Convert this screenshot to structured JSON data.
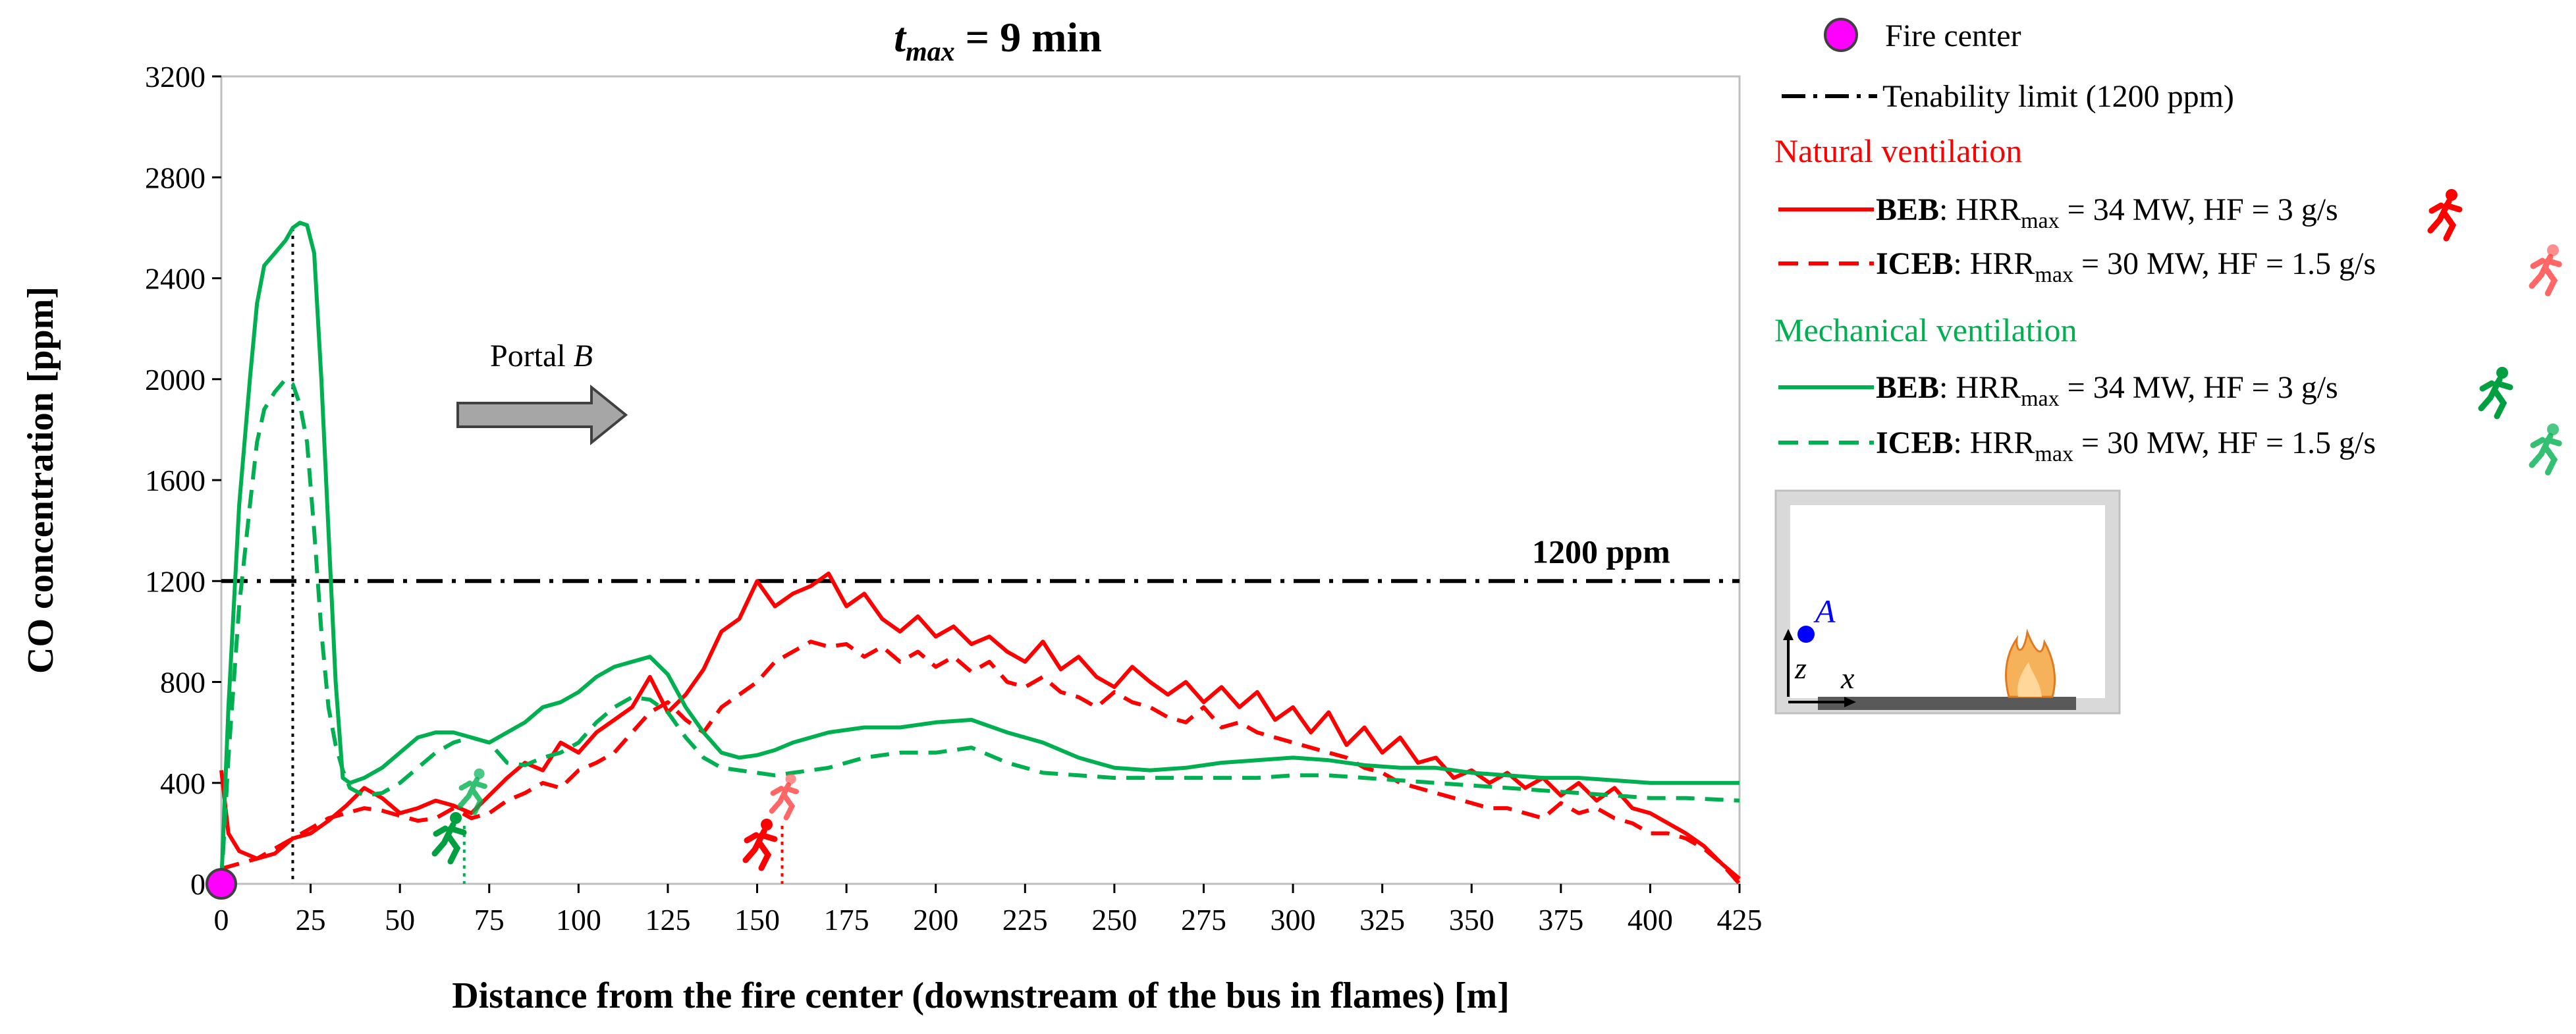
{
  "chart_data": {
    "type": "line",
    "title_var": "t",
    "title_sub": "max",
    "title_rest": " = 9 min",
    "xlabel": "Distance from the fire center (downstream of the bus in flames) [m]",
    "ylabel": "CO concentration [ppm]",
    "xlim": [
      0,
      425
    ],
    "ylim": [
      0,
      3200
    ],
    "xticks": [
      "0",
      "25",
      "50",
      "75",
      "100",
      "125",
      "150",
      "175",
      "200",
      "225",
      "250",
      "275",
      "300",
      "325",
      "350",
      "375",
      "400",
      "425"
    ],
    "yticks": [
      "0",
      "400",
      "800",
      "1200",
      "1600",
      "2000",
      "2400",
      "2800",
      "3200"
    ],
    "threshold": {
      "value": 1200,
      "label": "1200 ppm"
    },
    "annotation": {
      "text": "Portal ",
      "italic": "B"
    },
    "markers": {
      "fire_center_x": 0,
      "green_vline_x": 20,
      "occupant_bev_mech_x": 68,
      "occupant_bev_nat_x": 157
    },
    "series": [
      {
        "name": "Natural ventilation - BEB",
        "color": "#ff0000",
        "dash": "solid",
        "x": [
          0,
          2,
          5,
          10,
          15,
          20,
          25,
          30,
          35,
          40,
          45,
          50,
          55,
          60,
          65,
          70,
          75,
          80,
          85,
          90,
          95,
          100,
          105,
          110,
          115,
          120,
          125,
          130,
          135,
          140,
          145,
          150,
          155,
          160,
          165,
          170,
          175,
          180,
          185,
          190,
          195,
          200,
          205,
          210,
          215,
          220,
          225,
          230,
          235,
          240,
          245,
          250,
          255,
          260,
          265,
          270,
          275,
          280,
          285,
          290,
          295,
          300,
          305,
          310,
          315,
          320,
          325,
          330,
          335,
          340,
          345,
          350,
          355,
          360,
          365,
          370,
          375,
          380,
          385,
          390,
          395,
          400,
          405,
          410,
          415,
          420,
          425
        ],
        "values": [
          450,
          200,
          130,
          100,
          120,
          180,
          200,
          250,
          310,
          380,
          340,
          280,
          300,
          330,
          310,
          280,
          350,
          420,
          480,
          450,
          560,
          520,
          600,
          650,
          700,
          820,
          680,
          750,
          850,
          1000,
          1050,
          1200,
          1100,
          1150,
          1180,
          1230,
          1100,
          1150,
          1050,
          1000,
          1060,
          980,
          1020,
          950,
          980,
          920,
          880,
          960,
          850,
          900,
          820,
          780,
          860,
          800,
          750,
          800,
          720,
          780,
          700,
          760,
          650,
          700,
          600,
          680,
          550,
          620,
          520,
          580,
          480,
          500,
          420,
          450,
          400,
          440,
          380,
          420,
          350,
          400,
          330,
          380,
          300,
          280,
          240,
          200,
          150,
          80,
          20
        ]
      },
      {
        "name": "Natural ventilation - ICEB",
        "color": "#ff0000",
        "dash": "dashed",
        "x": [
          0,
          5,
          10,
          15,
          20,
          25,
          30,
          35,
          40,
          45,
          50,
          55,
          60,
          65,
          70,
          75,
          80,
          85,
          90,
          95,
          100,
          105,
          110,
          115,
          120,
          125,
          130,
          135,
          140,
          145,
          150,
          155,
          160,
          165,
          170,
          175,
          180,
          185,
          190,
          195,
          200,
          205,
          210,
          215,
          220,
          225,
          230,
          235,
          240,
          245,
          250,
          255,
          260,
          265,
          270,
          275,
          280,
          285,
          290,
          295,
          300,
          305,
          310,
          315,
          320,
          325,
          330,
          335,
          340,
          345,
          350,
          355,
          360,
          365,
          370,
          375,
          380,
          385,
          390,
          395,
          400,
          405,
          410,
          415,
          420,
          425
        ],
        "values": [
          60,
          80,
          100,
          140,
          180,
          220,
          260,
          280,
          300,
          290,
          270,
          250,
          260,
          300,
          260,
          280,
          330,
          360,
          400,
          380,
          450,
          480,
          520,
          600,
          680,
          720,
          650,
          600,
          700,
          750,
          800,
          880,
          920,
          960,
          940,
          950,
          900,
          940,
          880,
          920,
          860,
          900,
          840,
          880,
          800,
          780,
          820,
          760,
          740,
          700,
          760,
          720,
          700,
          660,
          640,
          700,
          620,
          640,
          600,
          580,
          560,
          540,
          520,
          500,
          460,
          440,
          400,
          380,
          360,
          340,
          320,
          300,
          300,
          280,
          260,
          320,
          280,
          300,
          260,
          240,
          200,
          200,
          180,
          140,
          80,
          0
        ]
      },
      {
        "name": "Mechanical ventilation - BEB",
        "color": "#00b050",
        "dash": "solid",
        "x": [
          0,
          2,
          5,
          8,
          10,
          12,
          15,
          18,
          20,
          22,
          24,
          26,
          28,
          30,
          32,
          34,
          36,
          40,
          45,
          50,
          55,
          60,
          65,
          70,
          75,
          80,
          85,
          90,
          95,
          100,
          105,
          110,
          115,
          120,
          125,
          130,
          135,
          140,
          145,
          150,
          155,
          160,
          170,
          180,
          190,
          200,
          210,
          220,
          230,
          240,
          250,
          260,
          270,
          280,
          290,
          300,
          310,
          320,
          330,
          340,
          350,
          360,
          370,
          380,
          390,
          400,
          410,
          425
        ],
        "values": [
          0,
          700,
          1500,
          2000,
          2300,
          2450,
          2500,
          2550,
          2600,
          2620,
          2610,
          2500,
          2000,
          1400,
          800,
          420,
          400,
          420,
          460,
          520,
          580,
          600,
          600,
          580,
          560,
          600,
          640,
          700,
          720,
          760,
          820,
          860,
          880,
          900,
          830,
          700,
          600,
          520,
          500,
          510,
          530,
          560,
          600,
          620,
          620,
          640,
          650,
          600,
          560,
          500,
          460,
          450,
          460,
          480,
          490,
          500,
          490,
          470,
          460,
          460,
          440,
          430,
          420,
          420,
          410,
          400,
          400,
          400
        ]
      },
      {
        "name": "Mechanical ventilation - ICEB",
        "color": "#00b050",
        "dash": "dashed",
        "x": [
          0,
          2,
          5,
          8,
          10,
          12,
          15,
          18,
          20,
          22,
          24,
          26,
          28,
          30,
          32,
          34,
          36,
          40,
          45,
          50,
          55,
          60,
          65,
          70,
          75,
          80,
          85,
          90,
          95,
          100,
          105,
          110,
          115,
          120,
          125,
          130,
          135,
          140,
          145,
          150,
          155,
          160,
          170,
          180,
          190,
          200,
          210,
          220,
          230,
          240,
          250,
          260,
          270,
          280,
          290,
          300,
          310,
          320,
          330,
          340,
          350,
          360,
          370,
          380,
          390,
          400,
          410,
          425
        ],
        "values": [
          0,
          500,
          1100,
          1500,
          1750,
          1880,
          1950,
          2000,
          1980,
          1900,
          1750,
          1400,
          1000,
          700,
          550,
          450,
          380,
          350,
          360,
          400,
          460,
          520,
          560,
          580,
          560,
          480,
          470,
          500,
          520,
          560,
          640,
          700,
          740,
          730,
          680,
          580,
          500,
          460,
          450,
          440,
          430,
          440,
          460,
          500,
          520,
          520,
          540,
          480,
          440,
          430,
          420,
          420,
          420,
          420,
          420,
          430,
          430,
          420,
          410,
          400,
          390,
          380,
          370,
          360,
          350,
          340,
          340,
          330
        ]
      }
    ]
  },
  "legend": {
    "fire_center": "Fire center",
    "tenability": "Tenability limit (1200 ppm)",
    "natural_header": "Natural ventilation",
    "mechanical_header": "Mechanical ventilation",
    "beb_name": "BEB",
    "iceb_name": "ICEB",
    "hrr_prefix": ": HRR",
    "hrr_sub": "max",
    "beb_rest": " = 34 MW, HF = 3 g/s",
    "iceb_rest": " = 30 MW, HF = 1.5 g/s"
  },
  "inset": {
    "point_label": "A",
    "z_label": "z",
    "x_label": "x"
  },
  "colors": {
    "natural": "#ff0000",
    "mechanical": "#00b050",
    "fire_center": "#ff00ff",
    "threshold": "#000000",
    "arrow_fill": "#a6a6a6",
    "inset_wall": "#d9d9d9",
    "inset_floor": "#595959",
    "point_a": "#0000ff"
  }
}
